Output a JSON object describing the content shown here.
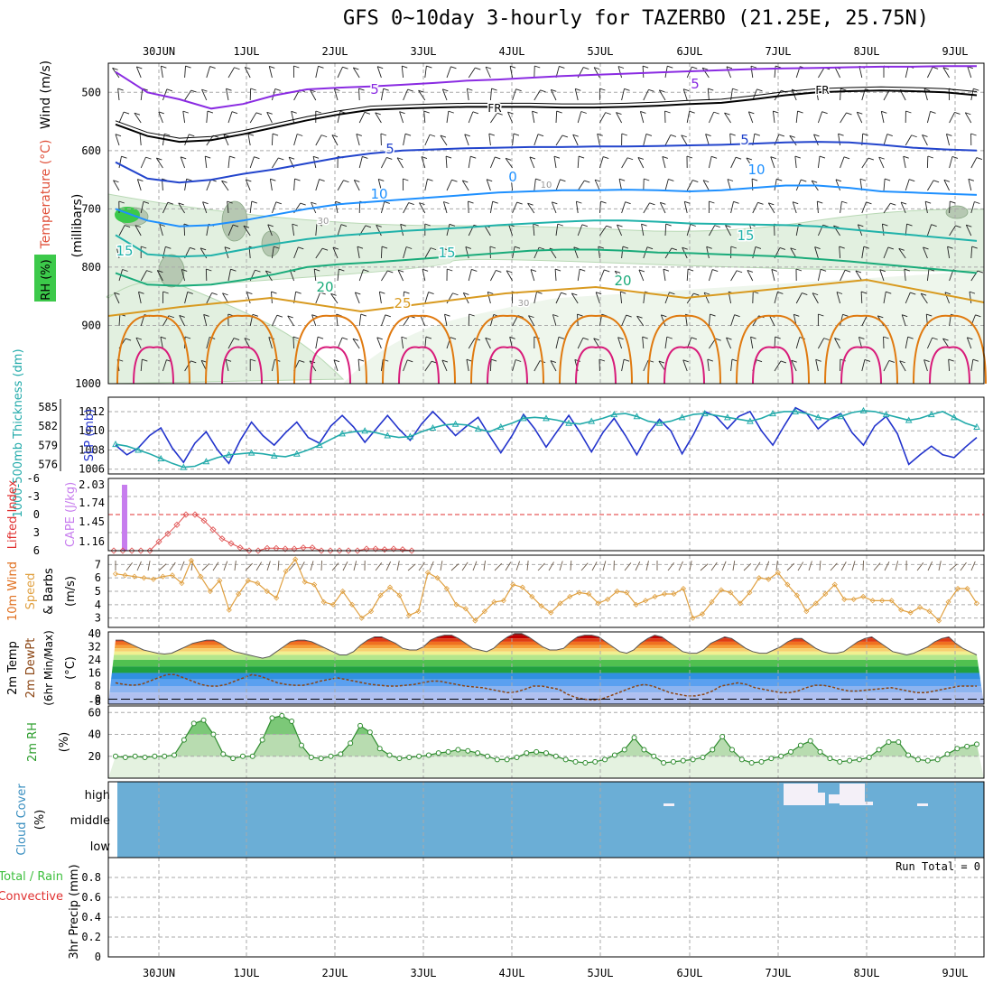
{
  "title": "GFS 0~10day 3-hourly for TAZERBO (21.25E, 25.75N)",
  "chart_data": [
    {
      "type": "contour-timeheight",
      "name": "upper-air",
      "x_labels": [
        "30JUN",
        "1JUL",
        "2JUL",
        "3JUL",
        "4JUL",
        "5JUL",
        "6JUL",
        "7JUL",
        "8JUL",
        "9JUL"
      ],
      "ylabel": "(millibars)",
      "side_labels": [
        "Wind (m/s)",
        "Temperature (°C)",
        "RH (%)"
      ],
      "y_ticks": [
        "500",
        "600",
        "700",
        "800",
        "900",
        "1000"
      ],
      "ylim": [
        450,
        1000
      ],
      "contour_labels": [
        {
          "text": "5",
          "color": "#8a2be2"
        },
        {
          "text": "5",
          "color": "#8a2be2"
        },
        {
          "text": "FR",
          "color": "#000000"
        },
        {
          "text": "FR",
          "color": "#000000"
        },
        {
          "text": "5",
          "color": "#2244cc"
        },
        {
          "text": "5",
          "color": "#2244cc"
        },
        {
          "text": "10",
          "color": "#1e90ff"
        },
        {
          "text": "10",
          "color": "#1e90ff"
        },
        {
          "text": "15",
          "color": "#20b2aa"
        },
        {
          "text": "15",
          "color": "#20b2aa"
        },
        {
          "text": "15",
          "color": "#20b2aa"
        },
        {
          "text": "20",
          "color": "#1aab7a"
        },
        {
          "text": "20",
          "color": "#1aab7a"
        },
        {
          "text": "25",
          "color": "#d89a20"
        },
        {
          "text": "0",
          "color": "#1e90ff"
        },
        {
          "text": "10",
          "color": "#999999"
        },
        {
          "text": "30",
          "color": "#999999"
        },
        {
          "text": "30",
          "color": "#999999"
        }
      ],
      "levels": {
        "purple": [
          465,
          500,
          512,
          528,
          520,
          505,
          495,
          492,
          490,
          487,
          484,
          480,
          478,
          475,
          472,
          470,
          468,
          466,
          464,
          462,
          460,
          459,
          458,
          457,
          456,
          456,
          455,
          455
        ],
        "black": [
          555,
          575,
          585,
          582,
          572,
          560,
          548,
          538,
          530,
          528,
          526,
          525,
          525,
          525,
          526,
          526,
          525,
          523,
          520,
          518,
          512,
          505,
          500,
          498,
          497,
          498,
          500,
          505
        ],
        "blue": [
          620,
          648,
          655,
          650,
          640,
          632,
          622,
          612,
          605,
          600,
          598,
          596,
          595,
          594,
          594,
          593,
          593,
          592,
          591,
          590,
          588,
          586,
          585,
          586,
          590,
          595,
          598,
          600
        ],
        "sky": [
          700,
          720,
          730,
          728,
          720,
          710,
          700,
          692,
          688,
          684,
          680,
          676,
          672,
          670,
          668,
          668,
          667,
          668,
          670,
          668,
          664,
          660,
          660,
          664,
          670,
          672,
          674,
          676
        ],
        "teal": [
          745,
          778,
          782,
          780,
          770,
          760,
          752,
          746,
          742,
          738,
          735,
          732,
          728,
          725,
          722,
          720,
          720,
          722,
          725,
          726,
          727,
          728,
          730,
          735,
          740,
          745,
          750,
          755
        ],
        "green": [
          810,
          830,
          832,
          830,
          822,
          812,
          800,
          795,
          792,
          788,
          784,
          780,
          776,
          772,
          770,
          770,
          772,
          775,
          776,
          778,
          780,
          782,
          786,
          790,
          795,
          800,
          805,
          810
        ]
      }
    },
    {
      "type": "line",
      "name": "slp-thickness",
      "ylabel_left": "1000-500mb Thickness (dm)",
      "ylabel_right": "SLP (mb)",
      "left_ticks": [
        "585",
        "582",
        "579",
        "576"
      ],
      "right_ticks": [
        "1012",
        "1010",
        "1008",
        "1006"
      ],
      "ylim": [
        1005.5,
        1013.5
      ],
      "series": [
        {
          "name": "SLP (mb)",
          "color": "#2233cc",
          "values": [
            1008.5,
            1007.5,
            1008.2,
            1009.5,
            1010.3,
            1008.2,
            1006.7,
            1008.7,
            1009.9,
            1008.0,
            1006.6,
            1009.0,
            1010.9,
            1009.5,
            1008.5,
            1009.8,
            1010.9,
            1009.3,
            1008.7,
            1010.5,
            1011.6,
            1010.4,
            1008.8,
            1010.2,
            1011.6,
            1010.2,
            1009.0,
            1010.7,
            1012.0,
            1010.8,
            1009.5,
            1010.5,
            1011.4,
            1009.5,
            1007.7,
            1009.5,
            1011.7,
            1010.2,
            1008.3,
            1010.0,
            1011.6,
            1009.8,
            1007.8,
            1009.8,
            1011.3,
            1009.5,
            1007.5,
            1009.7,
            1011.2,
            1010.0,
            1007.6,
            1009.6,
            1012.0,
            1011.5,
            1010.2,
            1011.5,
            1012.0,
            1010.0,
            1008.5,
            1010.5,
            1012.4,
            1011.8,
            1010.2,
            1011.2,
            1011.8,
            1009.8,
            1008.5,
            1010.5,
            1011.5,
            1009.7,
            1006.5,
            1007.5,
            1008.4,
            1007.5,
            1007.2,
            1008.3,
            1009.3
          ]
        },
        {
          "name": "1000-500mb Thickness (dm)",
          "color": "#22aaaa",
          "values": [
            1008.6,
            1008.4,
            1008.0,
            1007.6,
            1007.1,
            1006.6,
            1006.2,
            1006.3,
            1006.8,
            1007.2,
            1007.5,
            1007.6,
            1007.7,
            1007.6,
            1007.4,
            1007.3,
            1007.6,
            1008.0,
            1008.5,
            1009.1,
            1009.7,
            1009.9,
            1010.0,
            1009.8,
            1009.5,
            1009.3,
            1009.4,
            1009.9,
            1010.3,
            1010.6,
            1010.7,
            1010.6,
            1010.2,
            1009.9,
            1010.4,
            1010.8,
            1011.3,
            1011.4,
            1011.3,
            1011.1,
            1010.8,
            1010.7,
            1011.0,
            1011.3,
            1011.7,
            1011.8,
            1011.5,
            1011.0,
            1010.8,
            1011.0,
            1011.4,
            1011.7,
            1011.8,
            1011.6,
            1011.4,
            1011.2,
            1011.0,
            1011.3,
            1011.8,
            1012.0,
            1012.0,
            1011.8,
            1011.4,
            1011.2,
            1011.5,
            1011.9,
            1012.1,
            1012.0,
            1011.7,
            1011.4,
            1011.1,
            1011.3,
            1011.7,
            1012.0,
            1011.4,
            1010.8,
            1010.4
          ]
        }
      ]
    },
    {
      "type": "bar-line",
      "name": "cape-li",
      "ylabel_left": "Lifted Index",
      "ylabel_right": "CAPE (J/kg)",
      "left_ticks": [
        "-6",
        "-3",
        "0",
        "3",
        "6"
      ],
      "right_ticks": [
        "2.03",
        "1.74",
        "1.45",
        "1.16"
      ],
      "cape_bar": {
        "x": "29JUN 15Z",
        "value": 2.03,
        "color": "#c77dee"
      },
      "lifted_index": [
        6,
        6,
        6,
        6,
        6,
        4.5,
        3.2,
        1.7,
        0.0,
        0.0,
        1.0,
        2.5,
        4.0,
        4.8,
        5.5,
        6,
        6,
        5.6,
        5.6,
        5.7,
        5.7,
        5.5,
        5.5,
        6,
        6,
        6,
        6,
        6,
        5.7,
        5.7,
        5.8,
        5.7,
        5.8,
        6
      ]
    },
    {
      "type": "line-barbs",
      "name": "wind-10m",
      "ylabel": "10m Wind Speed & Barbs (m/s)",
      "ylim": [
        2.3,
        7.7
      ],
      "y_ticks": [
        "7",
        "6",
        "5",
        "4",
        "3"
      ],
      "values": [
        6.3,
        6.2,
        6.1,
        6.0,
        5.9,
        6.1,
        6.2,
        5.6,
        7.3,
        6.1,
        5.0,
        5.8,
        3.6,
        4.8,
        5.8,
        5.6,
        5.0,
        4.5,
        6.5,
        7.4,
        5.7,
        5.5,
        4.2,
        4.0,
        5.0,
        4.0,
        3.0,
        3.5,
        4.7,
        5.3,
        4.7,
        3.2,
        3.5,
        6.4,
        6.0,
        5.2,
        4.0,
        3.7,
        2.8,
        3.5,
        4.2,
        4.3,
        5.5,
        5.3,
        4.6,
        3.9,
        3.4,
        4.1,
        4.6,
        4.9,
        4.8,
        4.1,
        4.4,
        5.0,
        4.9,
        4.0,
        4.3,
        4.6,
        4.8,
        4.8,
        5.2,
        3.0,
        3.3,
        4.2,
        5.1,
        4.9,
        4.1,
        4.9,
        6.0,
        5.9,
        6.4,
        5.5,
        4.7,
        3.5,
        4.1,
        4.8,
        5.5,
        4.4,
        4.4,
        4.6,
        4.3,
        4.3,
        4.3,
        3.6,
        3.4,
        3.8,
        3.5,
        2.8,
        4.2,
        5.2,
        5.2,
        4.1
      ]
    },
    {
      "type": "area-line",
      "name": "temp-dewpoint",
      "ylabel": "2m Temp 2m DewPt (6hr Min/Max) (°C)",
      "ylim": [
        -3,
        41
      ],
      "y_ticks": [
        "40",
        "32",
        "24",
        "16",
        "8",
        "0",
        "-8"
      ],
      "band_colors": [
        "#8b0000",
        "#c00000",
        "#e03c14",
        "#f07020",
        "#f5a03a",
        "#f7d070",
        "#f0f090",
        "#b4e68c",
        "#50c050",
        "#20a040",
        "#3090e0",
        "#5aa0f0",
        "#8cb4f0",
        "#b0c0f0"
      ],
      "temp": [
        36,
        36,
        34,
        32,
        30,
        29,
        28,
        27.5,
        28,
        30,
        32,
        34,
        35,
        36,
        36,
        34,
        31,
        29,
        28,
        27,
        26,
        25,
        26,
        29,
        32,
        35,
        36,
        36,
        35,
        33,
        31,
        29,
        27,
        27,
        29,
        33,
        36,
        38,
        38,
        36,
        34,
        31,
        30,
        30,
        32,
        36,
        38,
        39,
        39,
        37,
        34,
        31,
        30,
        29,
        31,
        35,
        38,
        40,
        40,
        38,
        35,
        32,
        30,
        30,
        31,
        35,
        38,
        39,
        39,
        38,
        35,
        32,
        29,
        28,
        30,
        34,
        37,
        39,
        38,
        35,
        32,
        29,
        28,
        28,
        30,
        34,
        36,
        38,
        37,
        34,
        31,
        29,
        28,
        28,
        30,
        32,
        35,
        37,
        37,
        34,
        31,
        29,
        28,
        28,
        29,
        32,
        35,
        37,
        38,
        35,
        32,
        29,
        28,
        27,
        28,
        30,
        32,
        35,
        37,
        38,
        34,
        31,
        29,
        27
      ],
      "dewpoint": [
        10,
        9,
        8.5,
        9,
        11,
        13,
        15,
        15,
        13,
        11,
        9,
        8,
        8,
        9,
        11,
        13,
        15,
        14,
        12,
        10,
        9,
        8.5,
        8.5,
        9.5,
        11,
        12,
        13,
        12,
        11,
        10,
        9,
        8.5,
        8,
        8,
        8.5,
        9,
        10,
        11,
        11,
        10,
        9,
        8,
        7.5,
        7,
        6,
        5,
        4,
        4.5,
        6,
        8,
        8,
        7,
        6,
        3,
        1,
        0,
        -0.5,
        0,
        2,
        4,
        6,
        8,
        9,
        8,
        6,
        4,
        3,
        2,
        2,
        3,
        5,
        8,
        9,
        10,
        9,
        7,
        6,
        5,
        4,
        4,
        5,
        7,
        8.5,
        8.5,
        7.5,
        6,
        5,
        5,
        5.5,
        6,
        6.5,
        7,
        6,
        5,
        4,
        4,
        5,
        6,
        7,
        8,
        8,
        8
      ]
    },
    {
      "type": "area-line",
      "name": "rh-2m",
      "ylabel": "2m RH (%)",
      "ylim": [
        0,
        66
      ],
      "y_ticks": [
        "60",
        "40",
        "20"
      ],
      "values": [
        20,
        19,
        20,
        19,
        20,
        20,
        21,
        35,
        50,
        53,
        40,
        22,
        18,
        20,
        20,
        35,
        55,
        57,
        52,
        30,
        19,
        18,
        20,
        22,
        32,
        48,
        42,
        27,
        21,
        18,
        19,
        20,
        21,
        23,
        24,
        26,
        25,
        23,
        20,
        17,
        17,
        19,
        23,
        24,
        23,
        20,
        17,
        15,
        14,
        15,
        17,
        21,
        26,
        37,
        26,
        20,
        14,
        15,
        16,
        17,
        19,
        26,
        38,
        26,
        17,
        14,
        15,
        18,
        20,
        24,
        30,
        34,
        24,
        18,
        15,
        16,
        17,
        19,
        26,
        33,
        33,
        21,
        17,
        16,
        17,
        22,
        27,
        29,
        31
      ]
    },
    {
      "type": "heatmap",
      "name": "cloud-cover",
      "ylabel": "Cloud Cover (%)",
      "rows": [
        "high",
        "middle",
        "low"
      ],
      "background_color": "#6baed6",
      "note": "nearly clear sky; small high-cloud patches around 5JUL-8JUL"
    },
    {
      "type": "bar",
      "name": "precip-3hr",
      "ylabel": "3hr Precip (mm)",
      "ylabel_extra": [
        "Total / Rain",
        "Convective"
      ],
      "ylim": [
        0,
        1
      ],
      "y_ticks": [
        "0.8",
        "0.6",
        "0.4",
        "0.2",
        "0"
      ],
      "run_total_label": "Run Total = 0",
      "values": []
    }
  ]
}
